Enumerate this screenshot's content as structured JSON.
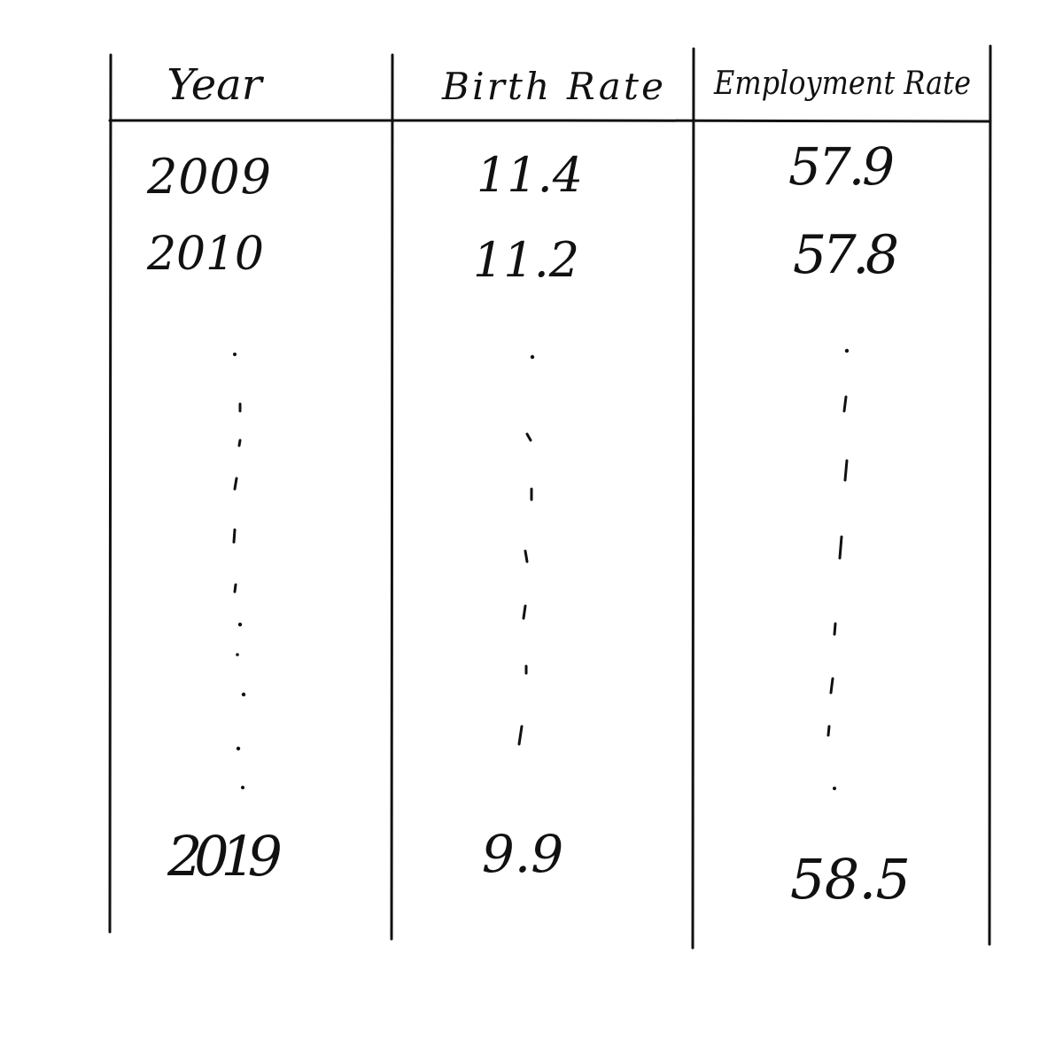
{
  "table": {
    "headers": [
      "Year",
      "Birth Rate",
      "Employment Rate"
    ],
    "rows": [
      [
        "2009",
        "11.4",
        "57.9"
      ],
      [
        "2010",
        "11.2",
        "57.8"
      ],
      [
        "2019",
        "9.9",
        "58.5"
      ]
    ],
    "ellipsis": "⋮"
  },
  "colors": {
    "ink": "#111111",
    "paper": "#ffffff"
  }
}
